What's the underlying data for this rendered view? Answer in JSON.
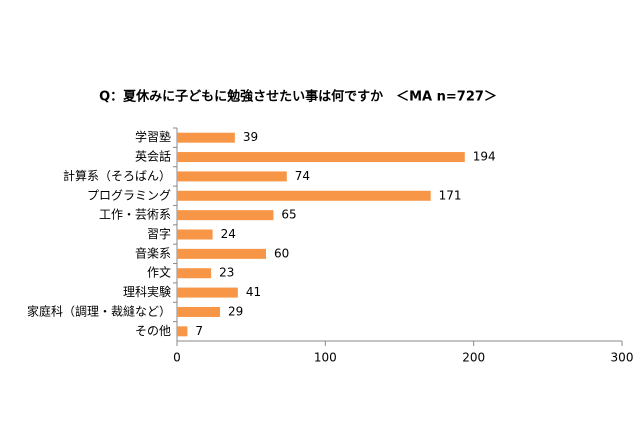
{
  "chart_data": {
    "type": "bar",
    "orientation": "horizontal",
    "title": "Q：夏休みに子どもに勉強させたい事は何ですか　＜MA n=727＞",
    "categories": [
      "学習塾",
      "英会話",
      "計算系（そろばん）",
      "プログラミング",
      "工作・芸術系",
      "習字",
      "音楽系",
      "作文",
      "理科実験",
      "家庭科（調理・裁縫など）",
      "その他"
    ],
    "values": [
      39,
      194,
      74,
      171,
      65,
      24,
      60,
      23,
      41,
      29,
      7
    ],
    "color": "#f79646",
    "xlim": [
      0,
      300
    ],
    "xticks": [
      0,
      100,
      200,
      300
    ],
    "grid": false
  }
}
